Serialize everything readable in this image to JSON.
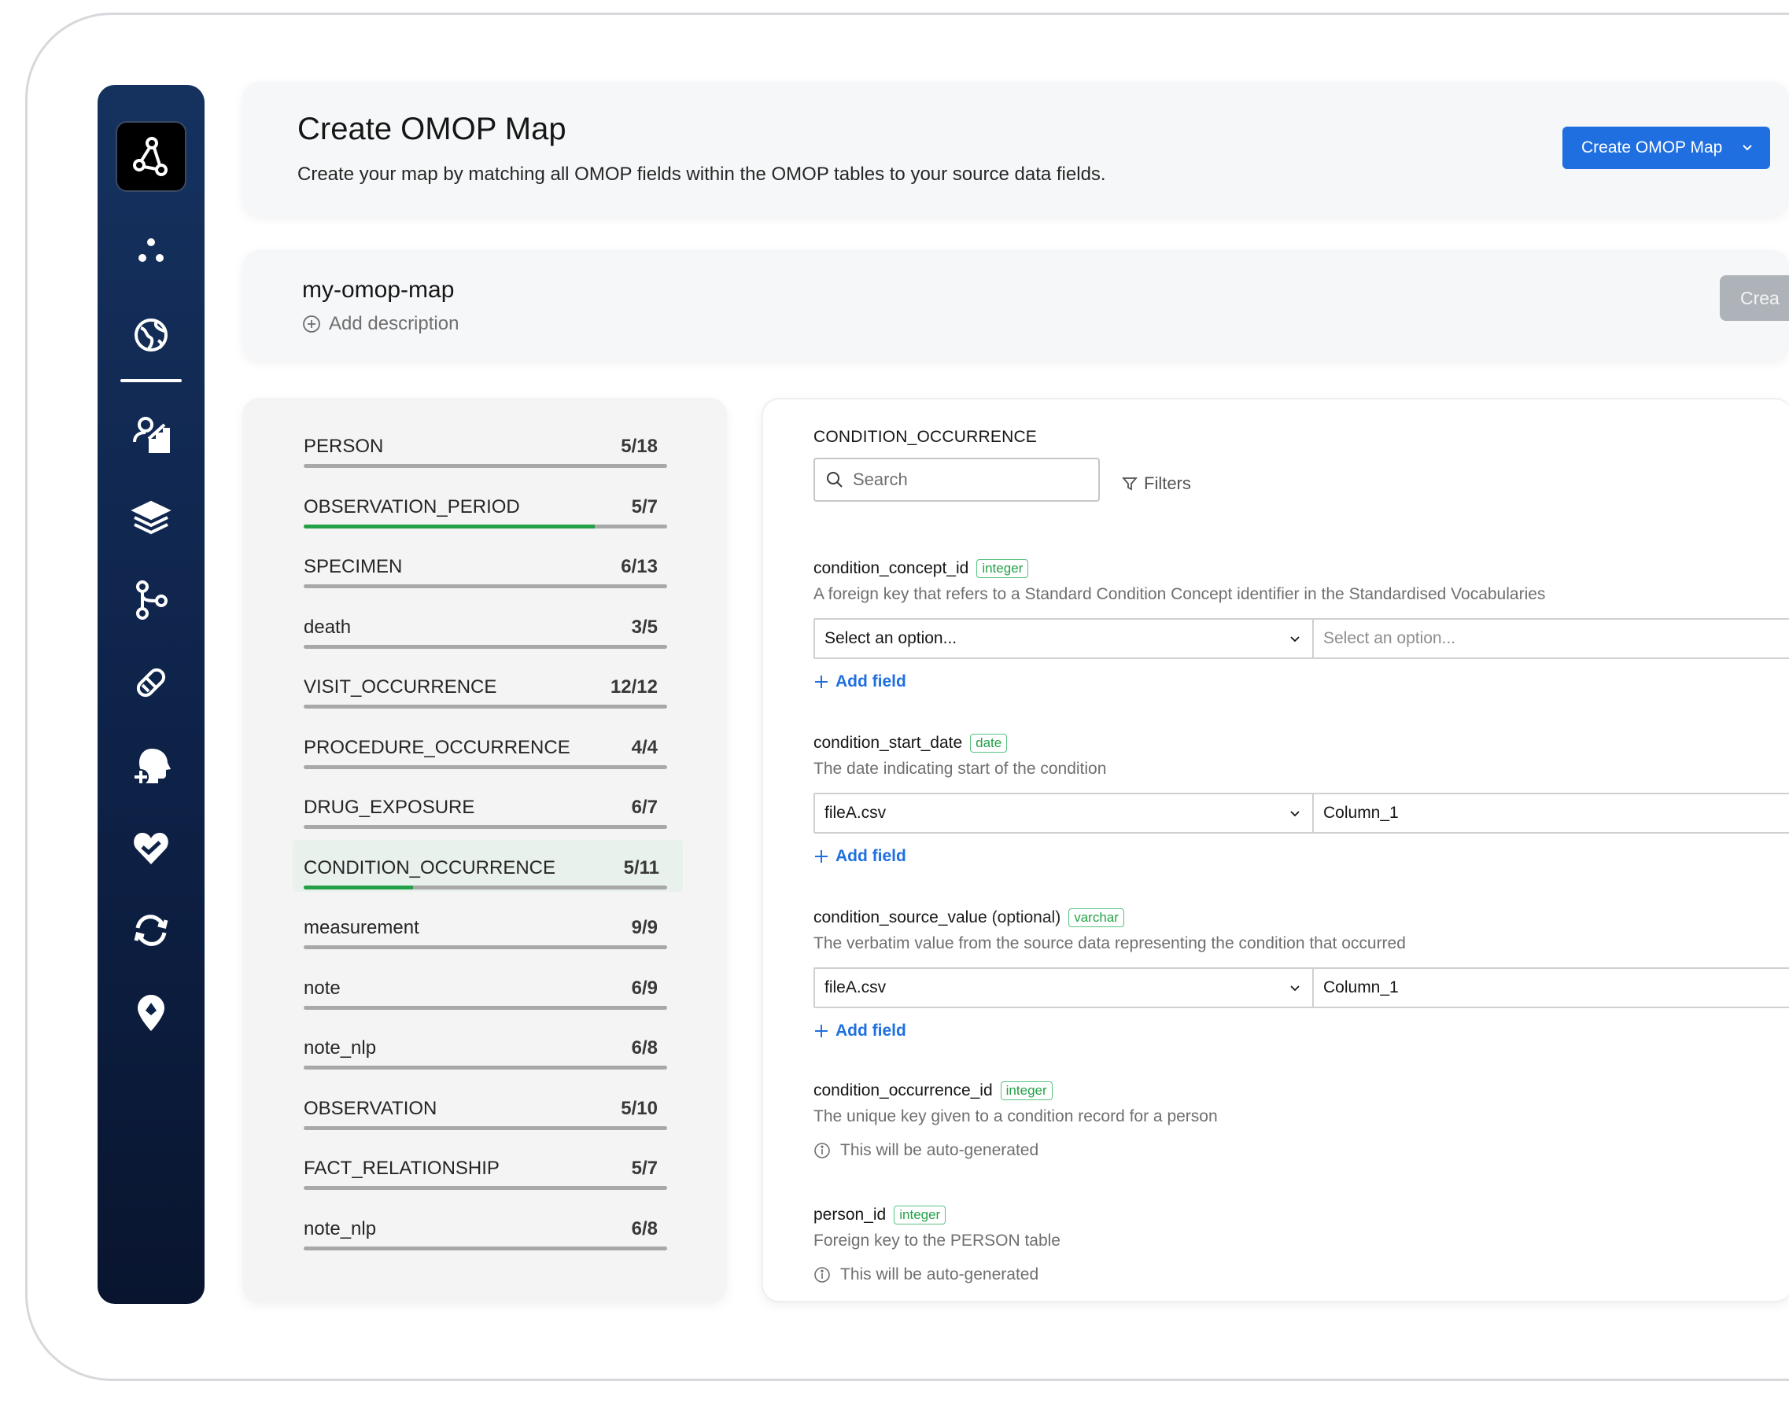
{
  "header": {
    "title": "Create OMOP Map",
    "description": "Create your map by matching all OMOP fields within the OMOP tables to your source data fields.",
    "create_button": "Create OMOP Map"
  },
  "map": {
    "name": "my-omop-map",
    "add_description": "Add description",
    "create_button_partial": "Crea"
  },
  "nav": {
    "icons": [
      "app-logo-icon",
      "dots-icon",
      "globe-icon",
      "analytics-icon",
      "layers-icon",
      "branch-icon",
      "pill-icon",
      "head-plus-icon",
      "heart-check-icon",
      "sync-icon",
      "location-pin-icon"
    ],
    "active": "globe-icon"
  },
  "tables": [
    {
      "name": "PERSON",
      "count": "5/18",
      "progress": 0
    },
    {
      "name": "OBSERVATION_PERIOD",
      "count": "5/7",
      "progress": 0.8
    },
    {
      "name": "SPECIMEN",
      "count": "6/13",
      "progress": 0
    },
    {
      "name": "death",
      "count": "3/5",
      "progress": 0
    },
    {
      "name": "VISIT_OCCURRENCE",
      "count": "12/12",
      "progress": 0
    },
    {
      "name": "PROCEDURE_OCCURRENCE",
      "count": "4/4",
      "progress": 0
    },
    {
      "name": "DRUG_EXPOSURE",
      "count": "6/7",
      "progress": 0
    },
    {
      "name": "CONDITION_OCCURRENCE",
      "count": "5/11",
      "progress": 0.3,
      "selected": true
    },
    {
      "name": "measurement",
      "count": "9/9",
      "progress": 0
    },
    {
      "name": "note",
      "count": "6/9",
      "progress": 0
    },
    {
      "name": "note_nlp",
      "count": "6/8",
      "progress": 0
    },
    {
      "name": "OBSERVATION",
      "count": "5/10",
      "progress": 0
    },
    {
      "name": "FACT_RELATIONSHIP",
      "count": "5/7",
      "progress": 0
    },
    {
      "name": "note_nlp",
      "count": "6/8",
      "progress": 0
    }
  ],
  "detail": {
    "title": "CONDITION_OCCURRENCE",
    "search_placeholder": "Search",
    "filters_label": "Filters",
    "add_field_label": "Add field",
    "auto_generated_label": "This will be auto-generated",
    "fields": [
      {
        "name": "condition_concept_id",
        "optional": "",
        "type": "integer",
        "description": "A foreign key that refers to a Standard Condition Concept identifier in the Standardised Vocabularies",
        "source_file": "Select an option...",
        "source_column": "Select an option..."
      },
      {
        "name": "condition_start_date",
        "optional": "",
        "type": "date",
        "description": "The date indicating start of the condition",
        "source_file": "fileA.csv",
        "source_column": "Column_1"
      },
      {
        "name": "condition_source_value",
        "optional": "(optional)",
        "type": "varchar",
        "description": "The verbatim value from the source data representing the condition that occurred",
        "source_file": "fileA.csv",
        "source_column": "Column_1"
      },
      {
        "name": "condition_occurrence_id",
        "optional": "",
        "type": "integer",
        "description": "The unique key given to a condition record for a person"
      },
      {
        "name": "person_id",
        "optional": "",
        "type": "integer",
        "description": "Foreign key to the PERSON table"
      }
    ]
  },
  "colors": {
    "primary": "#1f6fe0",
    "success": "#24a148",
    "nav_bg": "#0e2248"
  }
}
